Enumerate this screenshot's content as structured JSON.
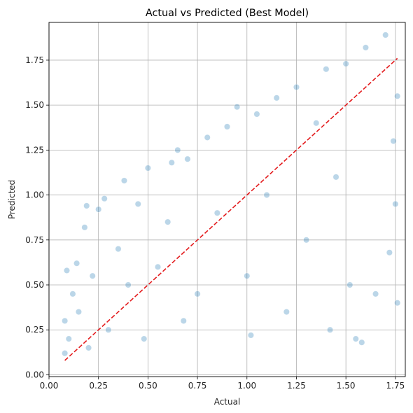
{
  "chart_data": {
    "type": "scatter",
    "title": "Actual vs Predicted (Best Model)",
    "xlabel": "Actual",
    "ylabel": "Predicted",
    "xlim": [
      0.0,
      1.8
    ],
    "ylim": [
      -0.01,
      1.96
    ],
    "xticks": [
      0.0,
      0.25,
      0.5,
      0.75,
      1.0,
      1.25,
      1.5,
      1.75
    ],
    "xtick_labels": [
      "0.00",
      "0.25",
      "0.50",
      "0.75",
      "1.00",
      "1.25",
      "1.50",
      "1.75"
    ],
    "yticks": [
      0.0,
      0.25,
      0.5,
      0.75,
      1.0,
      1.25,
      1.5,
      1.75
    ],
    "ytick_labels": [
      "0.00",
      "0.25",
      "0.50",
      "0.75",
      "1.00",
      "1.25",
      "1.50",
      "1.75"
    ],
    "grid": true,
    "point_color": "#1f77b4",
    "point_alpha": 0.3,
    "reference_line": {
      "style": "dashed",
      "color": "#e31a1c",
      "x": [
        0.08,
        1.76
      ],
      "y": [
        0.08,
        1.76
      ]
    },
    "series": [
      {
        "values": [
          [
            0.08,
            0.12
          ],
          [
            0.08,
            0.3
          ],
          [
            0.09,
            0.58
          ],
          [
            0.1,
            0.2
          ],
          [
            0.12,
            0.45
          ],
          [
            0.14,
            0.62
          ],
          [
            0.15,
            0.35
          ],
          [
            0.18,
            0.82
          ],
          [
            0.19,
            0.94
          ],
          [
            0.2,
            0.15
          ],
          [
            0.22,
            0.55
          ],
          [
            0.25,
            0.92
          ],
          [
            0.28,
            0.98
          ],
          [
            0.3,
            0.25
          ],
          [
            0.35,
            0.7
          ],
          [
            0.38,
            1.08
          ],
          [
            0.4,
            0.5
          ],
          [
            0.45,
            0.95
          ],
          [
            0.48,
            0.2
          ],
          [
            0.5,
            1.15
          ],
          [
            0.55,
            0.6
          ],
          [
            0.6,
            0.85
          ],
          [
            0.62,
            1.18
          ],
          [
            0.65,
            1.25
          ],
          [
            0.68,
            0.3
          ],
          [
            0.7,
            1.2
          ],
          [
            0.75,
            0.45
          ],
          [
            0.8,
            1.32
          ],
          [
            0.85,
            0.9
          ],
          [
            0.9,
            1.38
          ],
          [
            0.95,
            1.49
          ],
          [
            1.0,
            0.55
          ],
          [
            1.02,
            0.22
          ],
          [
            1.05,
            1.45
          ],
          [
            1.1,
            1.0
          ],
          [
            1.15,
            1.54
          ],
          [
            1.2,
            0.35
          ],
          [
            1.25,
            1.6
          ],
          [
            1.3,
            0.75
          ],
          [
            1.35,
            1.4
          ],
          [
            1.4,
            1.7
          ],
          [
            1.42,
            0.25
          ],
          [
            1.45,
            1.1
          ],
          [
            1.5,
            1.73
          ],
          [
            1.52,
            0.5
          ],
          [
            1.55,
            0.2
          ],
          [
            1.58,
            0.18
          ],
          [
            1.6,
            1.82
          ],
          [
            1.65,
            0.45
          ],
          [
            1.7,
            1.89
          ],
          [
            1.72,
            0.68
          ],
          [
            1.74,
            1.3
          ],
          [
            1.75,
            0.95
          ],
          [
            1.76,
            1.55
          ],
          [
            1.76,
            0.4
          ]
        ]
      }
    ]
  }
}
